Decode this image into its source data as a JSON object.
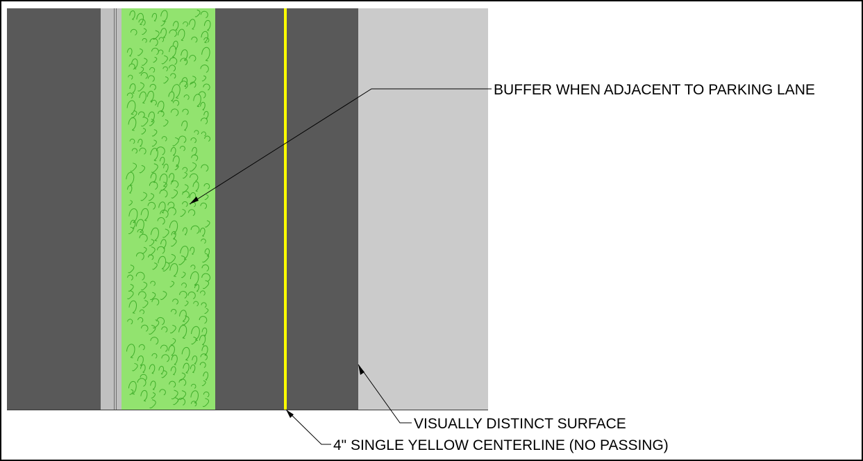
{
  "callouts": {
    "buffer": "BUFFER WHEN ADJACENT TO PARKING LANE",
    "surface": "VISUALLY DISTINCT SURFACE",
    "centerline": "4\" SINGLE YELLOW CENTERLINE (NO PASSING)"
  },
  "colors": {
    "background": "#ffffff",
    "travel_lane": "#595959",
    "curb_gutter": "#c0c0c0",
    "buffer": "#92e36f",
    "buffer_texture": "#3fae2a",
    "centerline": "#ffff00",
    "distinct_surface": "#cbcbcb",
    "leader": "#000000"
  }
}
